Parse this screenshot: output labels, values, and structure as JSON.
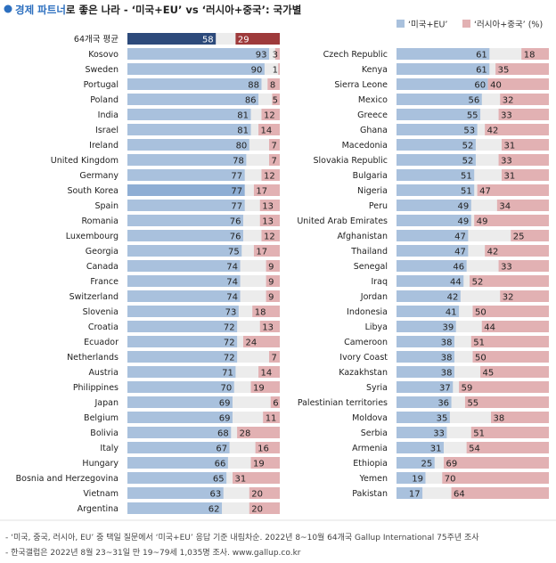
{
  "header": {
    "title_highlight": "경제 파트너",
    "title_rest": "로 좋은 나라 - ‘미국+EU’ vs ‘러시아+중국’: 국가별"
  },
  "legend": {
    "items": [
      {
        "label": "‘미국+EU’",
        "color": "#a9c1dd"
      },
      {
        "label": "‘러시아+중국’ (%)",
        "color": "#e2b1b3"
      }
    ]
  },
  "footnotes": [
    "- ‘미국, 중국, 러시아, EU’ 중 택일 질문에서 ‘미국+EU’ 응답 기준 내림차순. 2022년 8~10월 64개국 Gallup International 75주년 조사",
    "- 한국갤럽은 2022년 8월 23~31일 만 19~79세 1,035명 조사. www.gallup.co.kr"
  ],
  "colors": {
    "usa_eu": "#a9c1dd",
    "russia_china": "#e2b1b3",
    "track": "#ececec",
    "highlight_usa_eu": "#8faed4",
    "average_usa_eu": "#2d4a7b",
    "average_russia_china": "#9e3a3b",
    "title_accent": "#2c6fbf"
  },
  "chart_data": {
    "type": "bar",
    "orientation": "horizontal",
    "stacked_layout": "diverging-from-ends",
    "series": [
      {
        "name": "‘미국+EU’"
      },
      {
        "name": "‘러시아+중국’ (%)"
      }
    ],
    "panels": [
      {
        "countries": [
          "64개국 평균",
          "Kosovo",
          "Sweden",
          "Portugal",
          "Poland",
          "India",
          "Israel",
          "Ireland",
          "United Kingdom",
          "Germany",
          "South Korea",
          "Spain",
          "Romania",
          "Luxembourg",
          "Georgia",
          "Canada",
          "France",
          "Switzerland",
          "Slovenia",
          "Croatia",
          "Ecuador",
          "Netherlands",
          "Austria",
          "Philippines",
          "Japan",
          "Belgium",
          "Bolivia",
          "Italy",
          "Hungary",
          "Bosnia and Herzegovina",
          "Vietnam",
          "Argentina"
        ],
        "usa_eu": [
          58,
          93,
          90,
          88,
          86,
          81,
          81,
          80,
          78,
          77,
          77,
          77,
          76,
          76,
          75,
          74,
          74,
          74,
          73,
          72,
          72,
          72,
          71,
          70,
          69,
          69,
          68,
          67,
          66,
          65,
          63,
          62
        ],
        "russia_china": [
          29,
          3,
          1,
          8,
          5,
          12,
          14,
          7,
          7,
          12,
          17,
          13,
          13,
          12,
          17,
          9,
          9,
          9,
          18,
          13,
          24,
          7,
          14,
          19,
          6,
          11,
          28,
          16,
          19,
          31,
          20,
          20
        ]
      },
      {
        "countries": [
          "Czech Republic",
          "Kenya",
          "Sierra Leone",
          "Mexico",
          "Greece",
          "Ghana",
          "Macedonia",
          "Slovakia Republic",
          "Bulgaria",
          "Nigeria",
          "Peru",
          "United Arab Emirates",
          "Afghanistan",
          "Thailand",
          "Senegal",
          "Iraq",
          "Jordan",
          "Indonesia",
          "Libya",
          "Cameroon",
          "Ivory Coast",
          "Kazakhstan",
          "Syria",
          "Palestinian territories",
          "Moldova",
          "Serbia",
          "Armenia",
          "Ethiopia",
          "Yemen",
          "Pakistan"
        ],
        "usa_eu": [
          61,
          61,
          60,
          56,
          55,
          53,
          52,
          52,
          51,
          51,
          49,
          49,
          47,
          47,
          46,
          44,
          42,
          41,
          39,
          38,
          38,
          38,
          37,
          36,
          35,
          33,
          31,
          25,
          19,
          17
        ],
        "russia_china": [
          18,
          35,
          40,
          32,
          33,
          42,
          31,
          33,
          31,
          47,
          34,
          49,
          25,
          42,
          33,
          52,
          32,
          50,
          44,
          51,
          50,
          45,
          59,
          55,
          38,
          51,
          54,
          69,
          70,
          64
        ]
      }
    ],
    "highlight": [
      "64개국 평균",
      "South Korea"
    ],
    "xlim": [
      0,
      100
    ],
    "legend_position": "top-right"
  }
}
